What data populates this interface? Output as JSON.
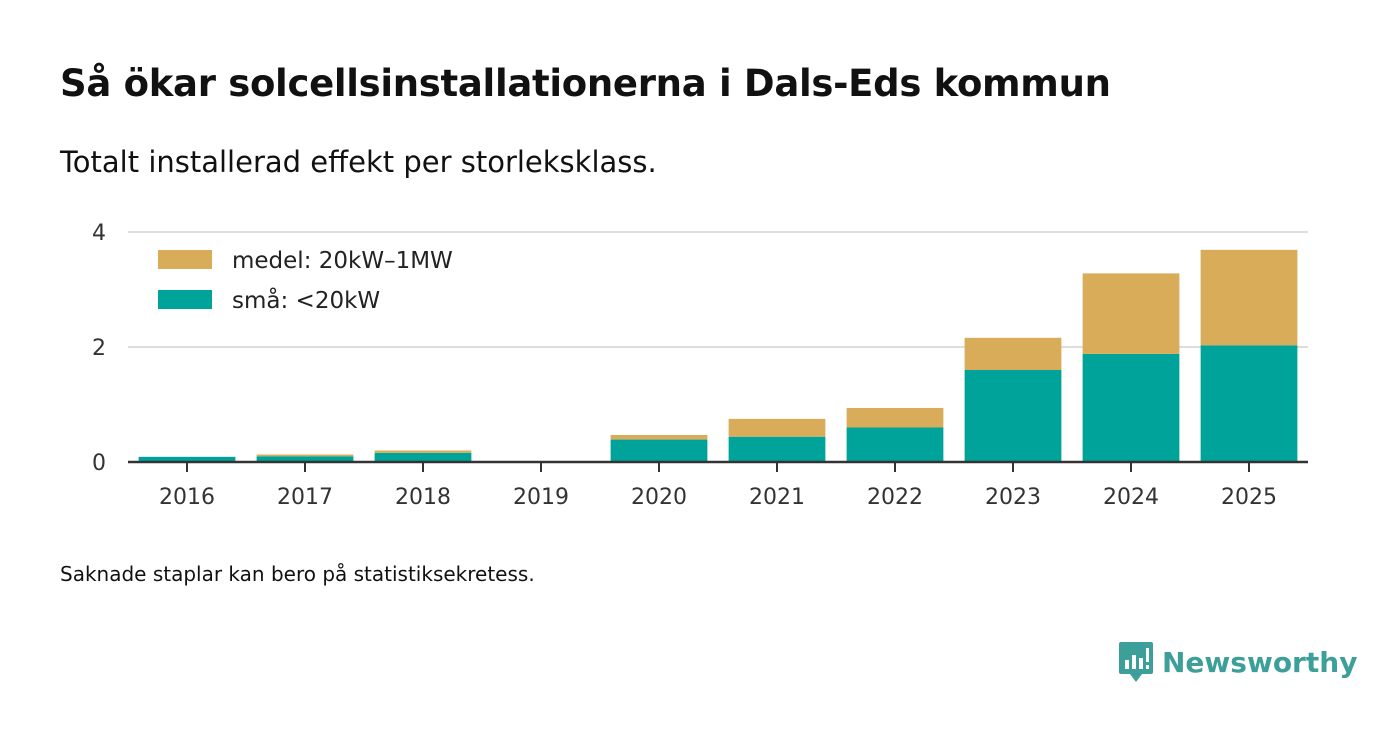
{
  "title": "Så ökar solcellsinstallationerna i Dals-Eds kommun",
  "subtitle": "Totalt installerad effekt per storleksklass.",
  "footnote": "Saknade staplar kan bero på statistiksekretess.",
  "brand": {
    "name": "Newsworthy",
    "icon": "newsworthy-logo-icon"
  },
  "colors": {
    "medel": "#d9ac5a",
    "sma": "#00a39a",
    "grid": "#dddddd",
    "axis": "#333333"
  },
  "chart_data": {
    "type": "bar",
    "stacked": true,
    "title": "Så ökar solcellsinstallationerna i Dals-Eds kommun",
    "subtitle": "Totalt installerad effekt per storleksklass.",
    "xlabel": "",
    "ylabel": "",
    "ylim": [
      0,
      4
    ],
    "yticks": [
      0,
      2,
      4
    ],
    "grid": true,
    "legend_position": "top-left",
    "categories": [
      "2016",
      "2017",
      "2018",
      "2019",
      "2020",
      "2021",
      "2022",
      "2023",
      "2024",
      "2025"
    ],
    "series": [
      {
        "name": "små: <20kW",
        "key": "sma",
        "values": [
          0.09,
          0.1,
          0.16,
          0,
          0.39,
          0.44,
          0.6,
          1.6,
          1.88,
          2.03
        ]
      },
      {
        "name": "medel: 20kW–1MW",
        "key": "medel",
        "values": [
          0,
          0.03,
          0.04,
          0,
          0.08,
          0.31,
          0.34,
          0.56,
          1.4,
          1.66
        ]
      }
    ],
    "legend": [
      "medel: 20kW–1MW",
      "små: <20kW"
    ]
  }
}
